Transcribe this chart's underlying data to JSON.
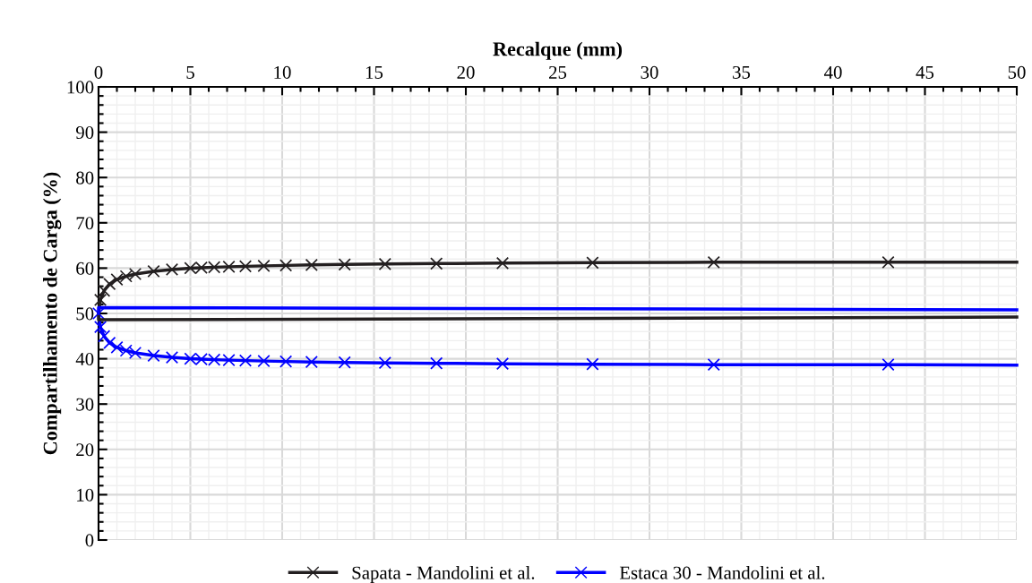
{
  "chart_data": {
    "type": "line",
    "xlabel": "Recalque (mm)",
    "ylabel": "Compartilhamento de Carga (%)",
    "xlim": [
      0,
      50
    ],
    "xticks": [
      0,
      5,
      10,
      15,
      20,
      25,
      30,
      35,
      40,
      45,
      50
    ],
    "ylim": [
      0,
      100
    ],
    "yticks": [
      0,
      10,
      20,
      30,
      40,
      50,
      60,
      70,
      80,
      90,
      100
    ],
    "grid": true,
    "legend": "bottom",
    "series": [
      {
        "name": "Sapata - Mandolini et al.",
        "color": "#231f20",
        "marker": "cross",
        "x": [
          0.1,
          0.3,
          0.6,
          1,
          1.5,
          2,
          3,
          4,
          5,
          5.6,
          6.3,
          7.1,
          8,
          9,
          10.2,
          11.6,
          13.4,
          15.6,
          18.4,
          22,
          26.9,
          33.5,
          43
        ],
        "values": [
          53,
          55,
          56.5,
          57.5,
          58.2,
          58.7,
          59.3,
          59.7,
          60,
          60.1,
          60.2,
          60.3,
          60.4,
          60.5,
          60.6,
          60.7,
          60.8,
          60.9,
          61,
          61.1,
          61.2,
          61.3,
          61.3
        ]
      },
      {
        "color": "#231f20",
        "marker": "none",
        "x": [
          43,
          50
        ],
        "values": [
          61.3,
          61.3
        ]
      },
      {
        "name": "Estaca 30 - Mandolini et al.",
        "color": "#0000ff",
        "marker": "cross",
        "x": [
          0,
          0.1,
          0.3,
          0.6,
          1,
          1.5,
          2,
          3,
          4,
          5,
          5.6,
          6.3,
          7.1,
          8,
          9,
          10.2,
          11.6,
          13.4,
          15.6,
          18.4,
          22,
          26.9,
          33.5,
          43
        ],
        "values": [
          50,
          47,
          45,
          43.5,
          42.5,
          41.8,
          41.3,
          40.7,
          40.3,
          40,
          39.9,
          39.8,
          39.7,
          39.6,
          39.5,
          39.4,
          39.3,
          39.2,
          39.1,
          39,
          38.9,
          38.8,
          38.7,
          38.7
        ]
      },
      {
        "color": "#0000ff",
        "marker": "none",
        "x": [
          43,
          50
        ],
        "values": [
          38.7,
          38.6
        ]
      },
      {
        "color": "#231f20",
        "marker": "none",
        "x": [
          0.1,
          0,
          0,
          50
        ],
        "values": [
          53,
          50,
          48.6,
          49.2
        ]
      },
      {
        "color": "#0000ff",
        "marker": "none",
        "x": [
          0,
          0,
          50
        ],
        "values": [
          50,
          51.3,
          50.8
        ]
      }
    ]
  }
}
